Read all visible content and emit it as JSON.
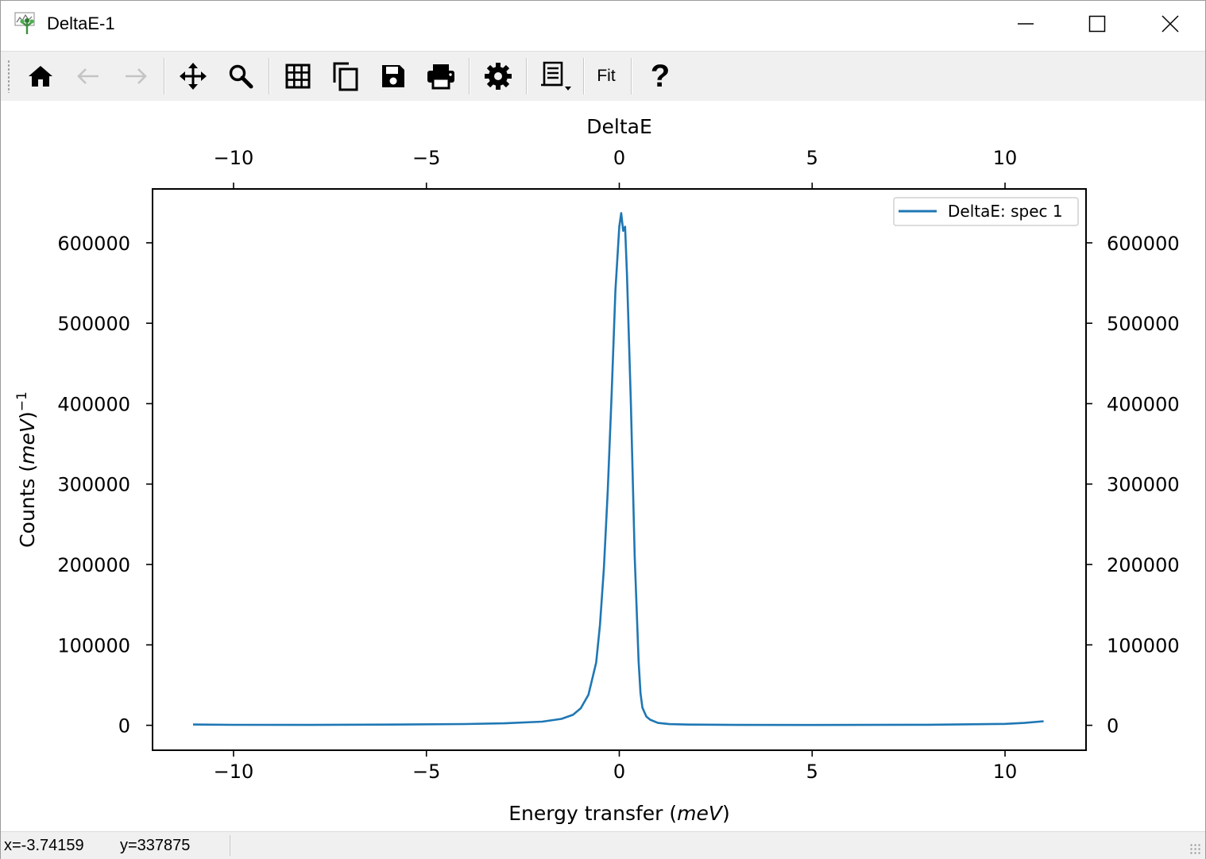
{
  "window": {
    "title": "DeltaE-1",
    "icon": "mantid-plot-icon",
    "controls": [
      "minimize-icon",
      "maximize-icon",
      "close-icon"
    ]
  },
  "toolbar": {
    "buttons": [
      {
        "name": "home",
        "icon": "home-icon",
        "enabled": true
      },
      {
        "name": "back",
        "icon": "arrow-left-icon",
        "enabled": false
      },
      {
        "name": "forward",
        "icon": "arrow-right-icon",
        "enabled": false
      },
      {
        "name": "pan",
        "icon": "move-arrows-icon",
        "enabled": true
      },
      {
        "name": "zoom",
        "icon": "magnifier-icon",
        "enabled": true
      },
      {
        "name": "grid",
        "icon": "grid-icon",
        "enabled": true
      },
      {
        "name": "copy",
        "icon": "copy-icon",
        "enabled": true
      },
      {
        "name": "save",
        "icon": "floppy-disk-icon",
        "enabled": true
      },
      {
        "name": "print",
        "icon": "printer-icon",
        "enabled": true
      },
      {
        "name": "configure",
        "icon": "gear-icon",
        "enabled": true
      },
      {
        "name": "script",
        "icon": "script-dropdown-icon",
        "enabled": true
      }
    ],
    "fit_label": "Fit",
    "help_label": "?"
  },
  "status": {
    "x_text": "x=-3.74159",
    "y_text": "y=337875"
  },
  "colors": {
    "series": "#1f77b4",
    "toolbar_bg": "#f0f0f0"
  },
  "chart_data": {
    "type": "line",
    "title": "DeltaE",
    "xlabel": "Energy transfer (meV)",
    "ylabel": "Counts (meV)^-1",
    "xlim": [
      -12.1,
      12.1
    ],
    "ylim": [
      -31000,
      667000
    ],
    "xticks": [
      -10,
      -5,
      0,
      5,
      10
    ],
    "xtick_labels": [
      "−10",
      "−5",
      "0",
      "5",
      "10"
    ],
    "yticks": [
      0,
      100000,
      200000,
      300000,
      400000,
      500000,
      600000
    ],
    "ytick_labels": [
      "0",
      "100000",
      "200000",
      "300000",
      "400000",
      "500000",
      "600000"
    ],
    "legend_position": "top-right",
    "grid": false,
    "series": [
      {
        "name": "DeltaE: spec 1",
        "color": "#1f77b4",
        "x": [
          -11.05,
          -10,
          -8,
          -6,
          -4,
          -3,
          -2,
          -1.5,
          -1.2,
          -1.0,
          -0.8,
          -0.6,
          -0.5,
          -0.4,
          -0.3,
          -0.2,
          -0.1,
          0.0,
          0.05,
          0.1,
          0.15,
          0.2,
          0.3,
          0.4,
          0.5,
          0.55,
          0.6,
          0.7,
          0.8,
          1.0,
          1.3,
          1.8,
          3,
          5,
          8,
          10,
          10.5,
          11.0
        ],
        "y": [
          1000,
          600,
          500,
          900,
          1600,
          2500,
          4500,
          8000,
          13000,
          21000,
          38000,
          78000,
          125000,
          195000,
          290000,
          410000,
          540000,
          620000,
          637000,
          615000,
          620000,
          560000,
          400000,
          210000,
          80000,
          40000,
          22000,
          11000,
          7000,
          3000,
          1500,
          900,
          500,
          400,
          700,
          1800,
          3000,
          5000
        ]
      }
    ]
  }
}
